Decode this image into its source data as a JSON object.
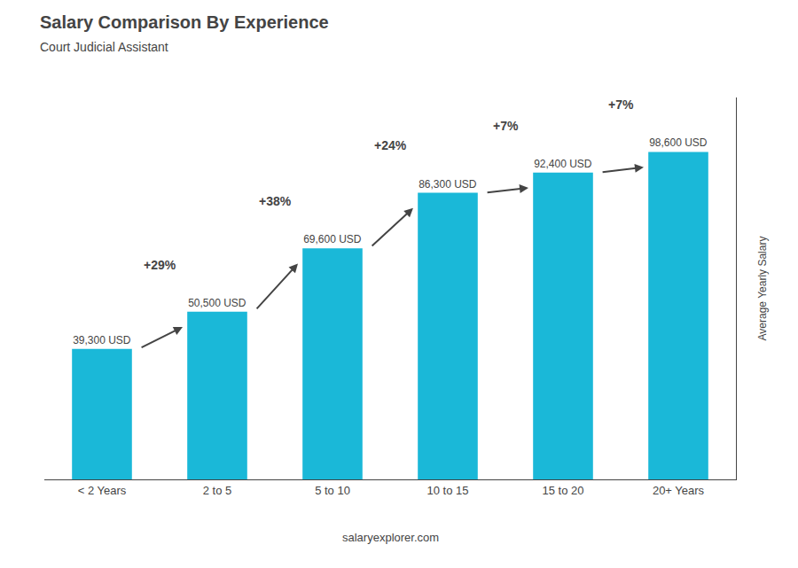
{
  "chart_data": {
    "type": "bar",
    "title": "Salary Comparison By Experience",
    "subtitle": "Court Judicial Assistant",
    "categories": [
      "< 2 Years",
      "2 to 5",
      "5 to 10",
      "10 to 15",
      "15 to 20",
      "20+ Years"
    ],
    "values": [
      39300,
      50500,
      69600,
      86300,
      92400,
      98600
    ],
    "value_labels": [
      "39,300 USD",
      "50,500 USD",
      "69,600 USD",
      "86,300 USD",
      "92,400 USD",
      "98,600 USD"
    ],
    "data_labels": true,
    "color": "#1ab8d8",
    "ylabel": "Average Yearly Salary",
    "ylim": [
      0,
      115000
    ],
    "tick_labels": "x",
    "grid": false,
    "annotations": [
      "+29%",
      "+38%",
      "+24%",
      "+7%",
      "+7%"
    ],
    "footer": "salaryexplorer.com"
  }
}
